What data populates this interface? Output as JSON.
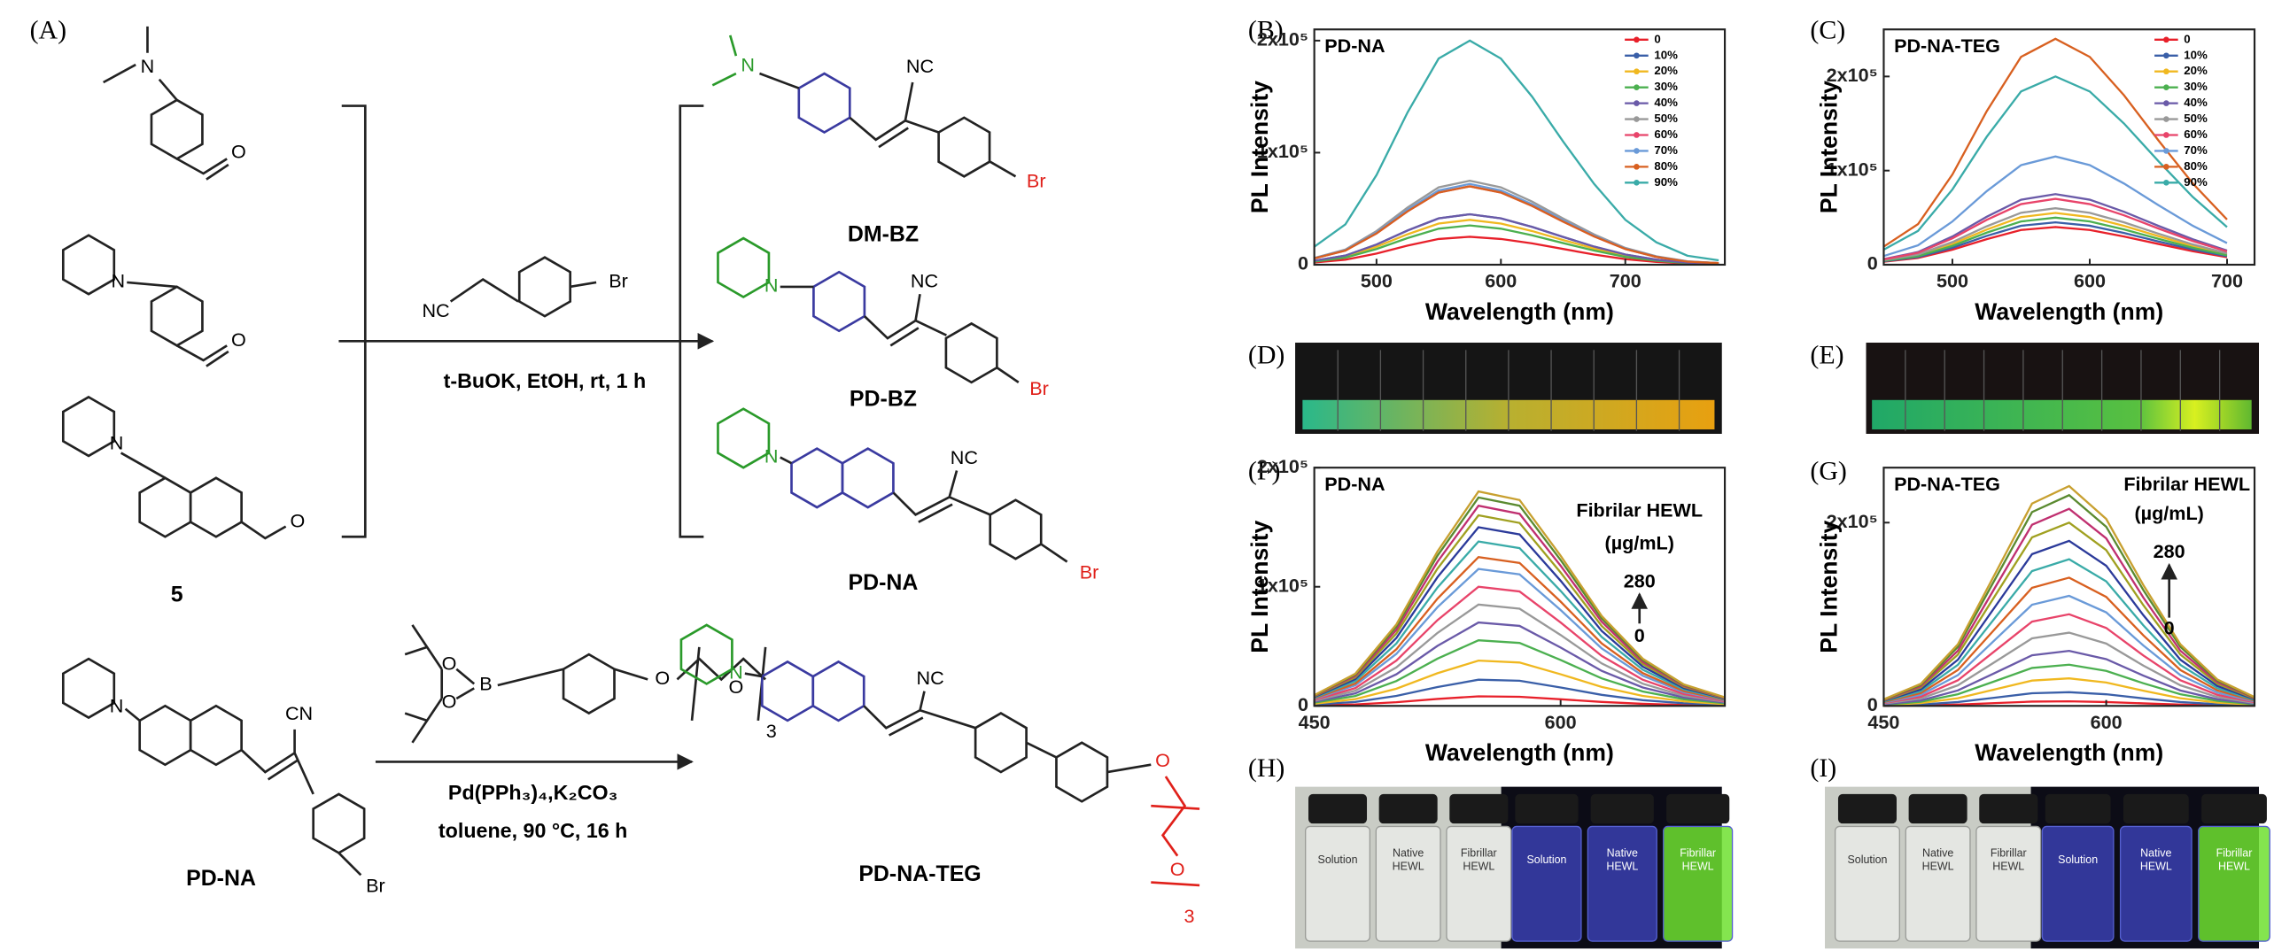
{
  "panel_labels": [
    "(A)",
    "(B)",
    "(C)",
    "(D)",
    "(E)",
    "(F)",
    "(G)",
    "(H)",
    "(I)"
  ],
  "scheme": {
    "compounds": [
      "DM-BZ",
      "PD-BZ",
      "PD-NA",
      "5",
      "PD-NA",
      "PD-NA-TEG"
    ],
    "conditions": [
      "t-BuOK, EtOH, rt, 1 h",
      "Pd(PPh₃)₄,K₂CO₃",
      "toluene, 90 °C, 16 h"
    ],
    "atoms": {
      "N": "N",
      "O": "O",
      "Br": "Br",
      "NC": "NC",
      "CN": "CN",
      "B": "B",
      "n": "3"
    }
  },
  "photos": {
    "vial_labels": [
      [
        "Solution"
      ],
      [
        "Native",
        "HEWL"
      ],
      [
        "Fibrillar",
        "HEWL"
      ]
    ]
  },
  "chart_data": [
    {
      "type": "line",
      "title": "PD-NA",
      "xlabel": "Wavelength (nm)",
      "ylabel": "PL Intensity",
      "xlim": [
        450,
        780
      ],
      "xticks": [
        500,
        600,
        700
      ],
      "ylim": [
        0,
        210000
      ],
      "yticks": [
        0,
        {
          "value": 100000,
          "label": "1x10⁵"
        },
        {
          "value": 200000,
          "label": "2x10⁵"
        }
      ],
      "legend": "upper right",
      "x": [
        450,
        475,
        500,
        525,
        550,
        575,
        600,
        625,
        650,
        675,
        700,
        725,
        750,
        775
      ],
      "series": [
        {
          "name": "0",
          "color": "#e8202a",
          "values": [
            2000,
            4500,
            10000,
            17000,
            23000,
            25000,
            23000,
            19000,
            14000,
            9000,
            5000,
            2500,
            1000,
            500
          ]
        },
        {
          "name": "10%",
          "color": "#3a5fa8",
          "values": [
            3600,
            8100,
            18000,
            30600,
            41400,
            45000,
            41400,
            33750,
            24750,
            16200,
            9000,
            4500,
            1800,
            900
          ]
        },
        {
          "name": "20%",
          "color": "#f0b820",
          "values": [
            3200,
            7200,
            16000,
            27200,
            36800,
            40000,
            36800,
            30000,
            22000,
            14400,
            8000,
            4000,
            1600,
            800
          ]
        },
        {
          "name": "30%",
          "color": "#4cb050",
          "values": [
            2800,
            6300,
            14000,
            23800,
            32200,
            35000,
            32200,
            26250,
            19250,
            12600,
            7000,
            3500,
            1400,
            700
          ]
        },
        {
          "name": "40%",
          "color": "#6a5aa8",
          "values": [
            3600,
            8100,
            18000,
            30600,
            41400,
            45000,
            41400,
            33750,
            24750,
            16200,
            9000,
            4500,
            1800,
            900
          ]
        },
        {
          "name": "50%",
          "color": "#999999",
          "values": [
            6000,
            13500,
            30000,
            51000,
            69000,
            75000,
            69000,
            56250,
            41250,
            27000,
            15000,
            7500,
            3000,
            1500
          ]
        },
        {
          "name": "60%",
          "color": "#e8446a",
          "values": [
            5600,
            12600,
            28000,
            47600,
            64400,
            70000,
            64400,
            52500,
            38500,
            25200,
            14000,
            7000,
            2800,
            1400
          ]
        },
        {
          "name": "70%",
          "color": "#6a9ad8",
          "values": [
            5760,
            12960,
            28800,
            48960,
            66240,
            72000,
            66240,
            54000,
            39600,
            25920,
            14400,
            7200,
            2880,
            1440
          ]
        },
        {
          "name": "80%",
          "color": "#d86020",
          "values": [
            5600,
            12600,
            28000,
            47600,
            64400,
            70000,
            64400,
            52500,
            38500,
            25200,
            14000,
            7000,
            2800,
            1400
          ]
        },
        {
          "name": "90%",
          "color": "#3aaba8",
          "values": [
            16000,
            36000,
            80000,
            136000,
            184000,
            200000,
            184000,
            150000,
            110000,
            72000,
            40000,
            20000,
            8000,
            4000
          ]
        }
      ]
    },
    {
      "type": "line",
      "title": "PD-NA-TEG",
      "xlabel": "Wavelength (nm)",
      "ylabel": "PL Intensity",
      "xlim": [
        450,
        720
      ],
      "xticks": [
        500,
        600,
        700
      ],
      "ylim": [
        0,
        250000
      ],
      "yticks": [
        0,
        {
          "value": 100000,
          "label": "1x10⁵"
        },
        {
          "value": 200000,
          "label": "2x10⁵"
        }
      ],
      "legend": "upper right",
      "x": [
        450,
        475,
        500,
        525,
        550,
        575,
        600,
        625,
        650,
        675,
        700
      ],
      "series": [
        {
          "name": "0",
          "color": "#e8202a",
          "values": [
            3200,
            7200,
            16000,
            27200,
            36800,
            40000,
            36800,
            30000,
            22000,
            14400,
            8000
          ]
        },
        {
          "name": "10%",
          "color": "#3a5fa8",
          "values": [
            3600,
            8100,
            18000,
            30600,
            41400,
            45000,
            41400,
            33750,
            24750,
            16200,
            9000
          ]
        },
        {
          "name": "20%",
          "color": "#f0b820",
          "values": [
            4400,
            9900,
            22000,
            37400,
            50600,
            55000,
            50600,
            41250,
            30250,
            19800,
            11000
          ]
        },
        {
          "name": "30%",
          "color": "#4cb050",
          "values": [
            4000,
            9000,
            20000,
            34000,
            46000,
            50000,
            46000,
            37500,
            27500,
            18000,
            10000
          ]
        },
        {
          "name": "40%",
          "color": "#6a5aa8",
          "values": [
            6000,
            13500,
            30000,
            51000,
            69000,
            75000,
            69000,
            56250,
            41250,
            27000,
            15000
          ]
        },
        {
          "name": "50%",
          "color": "#999999",
          "values": [
            4800,
            10800,
            24000,
            40800,
            55200,
            60000,
            55200,
            45000,
            33000,
            21600,
            12000
          ]
        },
        {
          "name": "60%",
          "color": "#e8446a",
          "values": [
            5600,
            12600,
            28000,
            47600,
            64400,
            70000,
            64400,
            52500,
            38500,
            25200,
            14000
          ]
        },
        {
          "name": "70%",
          "color": "#6a9ad8",
          "values": [
            9200,
            20700,
            46000,
            78200,
            105800,
            115000,
            105800,
            86250,
            63250,
            41400,
            23000
          ]
        },
        {
          "name": "80%",
          "color": "#d86020",
          "values": [
            19200,
            43200,
            96000,
            163200,
            220800,
            240000,
            220800,
            180000,
            132000,
            86400,
            48000
          ]
        },
        {
          "name": "90%",
          "color": "#3aaba8",
          "values": [
            16000,
            36000,
            80000,
            136000,
            184000,
            200000,
            184000,
            150000,
            110000,
            72000,
            40000
          ]
        }
      ]
    },
    {
      "type": "line",
      "title": "PD-NA",
      "xlabel": "Wavelength (nm)",
      "ylabel": "PL Intensity",
      "xlim": [
        450,
        700
      ],
      "xticks": [
        450,
        600
      ],
      "ylim": [
        0,
        200000
      ],
      "yticks": [
        0,
        {
          "value": 100000,
          "label": "1x10⁵"
        },
        {
          "value": 200000,
          "label": "2x10⁵"
        }
      ],
      "annotations": [
        "Fibrilar HEWL",
        "(µg/mL)",
        "280",
        "0"
      ],
      "x": [
        450,
        475,
        500,
        525,
        550,
        575,
        600,
        625,
        650,
        675,
        700
      ],
      "series": [
        {
          "color": "#e8202a",
          "values": [
            400,
            1200,
            3040,
            5760,
            8000,
            7680,
            5600,
            3360,
            1760,
            800,
            320
          ]
        },
        {
          "color": "#3a5fa8",
          "values": [
            1100,
            3300,
            8360,
            15840,
            22000,
            21120,
            15400,
            9240,
            4840,
            2200,
            880
          ]
        },
        {
          "color": "#f0b820",
          "values": [
            1900,
            5700,
            14440,
            27360,
            38000,
            36480,
            26600,
            15960,
            8360,
            3800,
            1520
          ]
        },
        {
          "color": "#4cb050",
          "values": [
            2750,
            8250,
            20900,
            39600,
            55000,
            52800,
            38500,
            23100,
            12100,
            5500,
            2200
          ]
        },
        {
          "color": "#6a5aa8",
          "values": [
            3500,
            10500,
            26600,
            50400,
            70000,
            67200,
            49000,
            29400,
            15400,
            7000,
            2800
          ]
        },
        {
          "color": "#999999",
          "values": [
            4250,
            12750,
            32300,
            61200,
            85000,
            81600,
            59500,
            35700,
            18700,
            8500,
            3400
          ]
        },
        {
          "color": "#e8446a",
          "values": [
            5000,
            15000,
            38000,
            72000,
            100000,
            96000,
            70000,
            42000,
            22000,
            10000,
            4000
          ]
        },
        {
          "color": "#6a9ad8",
          "values": [
            5750,
            17250,
            43700,
            82800,
            115000,
            110400,
            80500,
            48300,
            25300,
            11500,
            4600
          ]
        },
        {
          "color": "#d86020",
          "values": [
            6250,
            18750,
            47500,
            90000,
            125000,
            120000,
            87500,
            52500,
            27500,
            12500,
            5000
          ]
        },
        {
          "color": "#3aaba8",
          "values": [
            6900,
            20700,
            52440,
            99360,
            138000,
            132480,
            96600,
            57960,
            30360,
            13800,
            5520
          ]
        },
        {
          "color": "#2b3a9a",
          "values": [
            7500,
            22500,
            57000,
            108000,
            150000,
            144000,
            105000,
            63000,
            33000,
            15000,
            6000
          ]
        },
        {
          "color": "#a0a020",
          "values": [
            8000,
            24000,
            60800,
            115200,
            160000,
            153600,
            112000,
            67200,
            35200,
            16000,
            6400
          ]
        },
        {
          "color": "#c03070",
          "values": [
            8400,
            25200,
            63840,
            120960,
            168000,
            161280,
            117600,
            70560,
            36960,
            16800,
            6720
          ]
        },
        {
          "color": "#5a8a30",
          "values": [
            8750,
            26250,
            66500,
            126000,
            175000,
            168000,
            122500,
            73500,
            38500,
            17500,
            7000
          ]
        },
        {
          "color": "#c8a030",
          "values": [
            9000,
            27000,
            68400,
            129600,
            180000,
            172800,
            126000,
            75600,
            39600,
            18000,
            7200
          ]
        }
      ]
    },
    {
      "type": "line",
      "title": "PD-NA-TEG",
      "xlabel": "Wavelength (nm)",
      "ylabel": "PL Intensity",
      "xlim": [
        450,
        700
      ],
      "xticks": [
        450,
        600
      ],
      "ylim": [
        0,
        260000
      ],
      "yticks": [
        0,
        {
          "value": 200000,
          "label": "2x10⁵"
        }
      ],
      "annotations": [
        "Fibrilar HEWL",
        "(µg/mL)",
        "280",
        "0"
      ],
      "x": [
        450,
        475,
        500,
        525,
        550,
        575,
        600,
        625,
        650,
        675,
        700
      ],
      "series": [
        {
          "color": "#e8202a",
          "values": [
            150,
            500,
            1400,
            3000,
            4600,
            5000,
            4250,
            2750,
            1400,
            600,
            200
          ]
        },
        {
          "color": "#3a5fa8",
          "values": [
            450,
            1500,
            4200,
            9000,
            13800,
            15000,
            12750,
            8250,
            4200,
            1800,
            600
          ]
        },
        {
          "color": "#f0b820",
          "values": [
            900,
            3000,
            8400,
            18000,
            27600,
            30000,
            25500,
            16500,
            8400,
            3600,
            1200
          ]
        },
        {
          "color": "#4cb050",
          "values": [
            1350,
            4500,
            12600,
            27000,
            41400,
            45000,
            38250,
            24750,
            12600,
            5400,
            1800
          ]
        },
        {
          "color": "#6a5aa8",
          "values": [
            1800,
            6000,
            16800,
            36000,
            55200,
            60000,
            51000,
            33000,
            16800,
            7200,
            2400
          ]
        },
        {
          "color": "#999999",
          "values": [
            2400,
            8000,
            22400,
            48000,
            73600,
            80000,
            68000,
            44000,
            22400,
            9600,
            3200
          ]
        },
        {
          "color": "#e8446a",
          "values": [
            3000,
            10000,
            28000,
            60000,
            92000,
            100000,
            85000,
            55000,
            28000,
            12000,
            4000
          ]
        },
        {
          "color": "#6a9ad8",
          "values": [
            3600,
            12000,
            33600,
            72000,
            110400,
            120000,
            102000,
            66000,
            33600,
            14400,
            4800
          ]
        },
        {
          "color": "#d86020",
          "values": [
            4200,
            14000,
            39200,
            84000,
            128800,
            140000,
            119000,
            77000,
            39200,
            16800,
            5600
          ]
        },
        {
          "color": "#3aaba8",
          "values": [
            4800,
            16000,
            44800,
            96000,
            147200,
            160000,
            136000,
            88000,
            44800,
            19200,
            6400
          ]
        },
        {
          "color": "#2b3a9a",
          "values": [
            5400,
            18000,
            50400,
            108000,
            165600,
            180000,
            153000,
            99000,
            50400,
            21600,
            7200
          ]
        },
        {
          "color": "#a0a020",
          "values": [
            6000,
            20000,
            56000,
            120000,
            184000,
            200000,
            170000,
            110000,
            56000,
            24000,
            8000
          ]
        },
        {
          "color": "#c03070",
          "values": [
            6450,
            21500,
            60200,
            129000,
            197800,
            215000,
            182750,
            118250,
            60200,
            25800,
            8600
          ]
        },
        {
          "color": "#5a8a30",
          "values": [
            6900,
            23000,
            64400,
            138000,
            211600,
            230000,
            195500,
            126500,
            64400,
            27600,
            9200
          ]
        },
        {
          "color": "#c8a030",
          "values": [
            7200,
            24000,
            67200,
            144000,
            220800,
            240000,
            204000,
            132000,
            67200,
            28800,
            9600
          ]
        }
      ]
    }
  ]
}
